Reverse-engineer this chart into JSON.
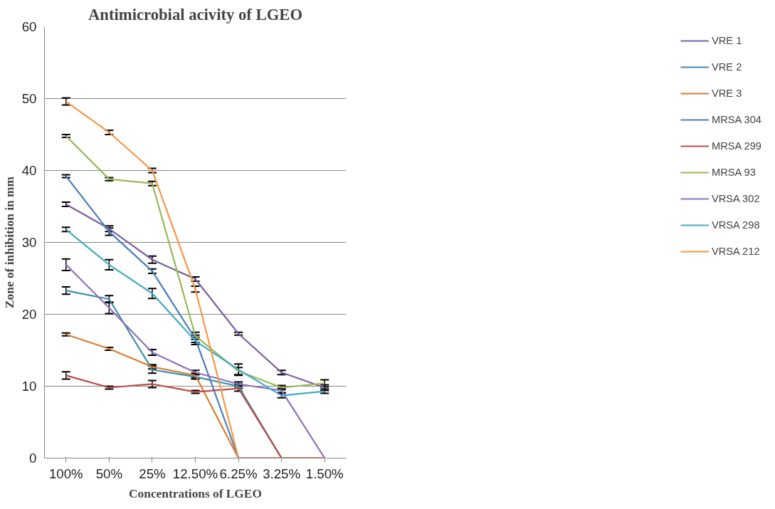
{
  "chart_data": {
    "type": "line",
    "title": "Antimicrobial acivity of LGEO",
    "xlabel": "Concentrations of LGEO",
    "ylabel": "Zone of inhibition in mm",
    "categories": [
      "100%",
      "50%",
      "25%",
      "12.50%",
      "6.25%",
      "3.25%",
      "1.50%"
    ],
    "ylim": [
      0,
      60
    ],
    "yticks": [
      0,
      10,
      20,
      30,
      40,
      50,
      60
    ],
    "grid": "y",
    "legend": "right",
    "marker": "none",
    "line_style": "solid",
    "series": [
      {
        "name": "VRE 1",
        "color": "#7d60a0",
        "values": [
          35.3,
          31.9,
          27.6,
          24.9,
          17.3,
          11.9,
          9.8
        ],
        "errors": [
          0.3,
          0.4,
          0.5,
          0.3,
          0.2,
          0.3,
          0.4
        ]
      },
      {
        "name": "VRE 2",
        "color": "#3991a8",
        "values": [
          23.3,
          22.1,
          12.3,
          11.3,
          10.0,
          0,
          0
        ],
        "errors": [
          0.5,
          0.5,
          0.5,
          0.3,
          0.3,
          null,
          null
        ]
      },
      {
        "name": "VRE 3",
        "color": "#d97c30",
        "values": [
          17.2,
          15.2,
          12.7,
          11.5,
          0,
          0,
          0
        ],
        "errors": [
          0.2,
          0.2,
          0.3,
          0.3,
          null,
          null,
          null
        ]
      },
      {
        "name": "MRSA 304",
        "color": "#4a7ebb",
        "values": [
          39.2,
          31.5,
          26.0,
          16.6,
          0,
          0,
          0
        ],
        "errors": [
          0.2,
          0.5,
          0.3,
          0.5,
          null,
          null,
          null
        ]
      },
      {
        "name": "MRSA 299",
        "color": "#be4b48",
        "values": [
          11.5,
          9.8,
          10.3,
          9.2,
          9.7,
          0,
          0
        ],
        "errors": [
          0.5,
          0.2,
          0.5,
          0.2,
          0.4,
          null,
          null
        ]
      },
      {
        "name": "MRSA 93",
        "color": "#98b954",
        "values": [
          44.8,
          38.8,
          38.2,
          17.0,
          12.1,
          9.8,
          10.4
        ],
        "errors": [
          0.2,
          0.2,
          0.3,
          0.5,
          0.5,
          0.3,
          0.5
        ]
      },
      {
        "name": "VRSA 302",
        "color": "#8f70bd",
        "values": [
          26.9,
          20.9,
          14.7,
          11.9,
          10.3,
          9.4,
          0
        ],
        "errors": [
          0.8,
          0.8,
          0.4,
          0.3,
          0.3,
          0.3,
          null
        ]
      },
      {
        "name": "VRSA 298",
        "color": "#46aac5",
        "values": [
          31.8,
          26.9,
          22.9,
          16.3,
          12.3,
          8.7,
          9.3
        ],
        "errors": [
          0.3,
          0.7,
          0.7,
          0.5,
          0.8,
          0.3,
          0.3
        ]
      },
      {
        "name": "VRSA 212",
        "color": "#f79646",
        "values": [
          49.6,
          45.3,
          40.0,
          23.5,
          0,
          0,
          0
        ],
        "errors": [
          0.5,
          0.3,
          0.3,
          0.4,
          null,
          null,
          null
        ]
      }
    ]
  }
}
